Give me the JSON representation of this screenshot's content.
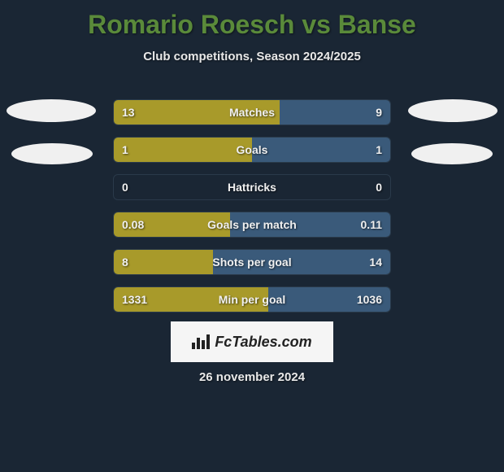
{
  "title": "Romario Roesch vs Banse",
  "subtitle": "Club competitions, Season 2024/2025",
  "date": "26 november 2024",
  "watermark": "FcTables.com",
  "colors": {
    "background": "#1a2634",
    "title": "#5a8a3a",
    "text": "#e8e8e8",
    "bar_left": "#a89a2a",
    "bar_right": "#3a5a7a",
    "oval": "#f0f0f0",
    "watermark_bg": "#f5f5f5"
  },
  "rows": [
    {
      "label": "Matches",
      "left_val": "13",
      "right_val": "9",
      "left_pct": 60,
      "right_pct": 40
    },
    {
      "label": "Goals",
      "left_val": "1",
      "right_val": "1",
      "left_pct": 50,
      "right_pct": 50
    },
    {
      "label": "Hattricks",
      "left_val": "0",
      "right_val": "0",
      "left_pct": 0,
      "right_pct": 0
    },
    {
      "label": "Goals per match",
      "left_val": "0.08",
      "right_val": "0.11",
      "left_pct": 42,
      "right_pct": 58
    },
    {
      "label": "Shots per goal",
      "left_val": "8",
      "right_val": "14",
      "left_pct": 36,
      "right_pct": 64
    },
    {
      "label": "Min per goal",
      "left_val": "1331",
      "right_val": "1036",
      "left_pct": 56,
      "right_pct": 44
    }
  ]
}
